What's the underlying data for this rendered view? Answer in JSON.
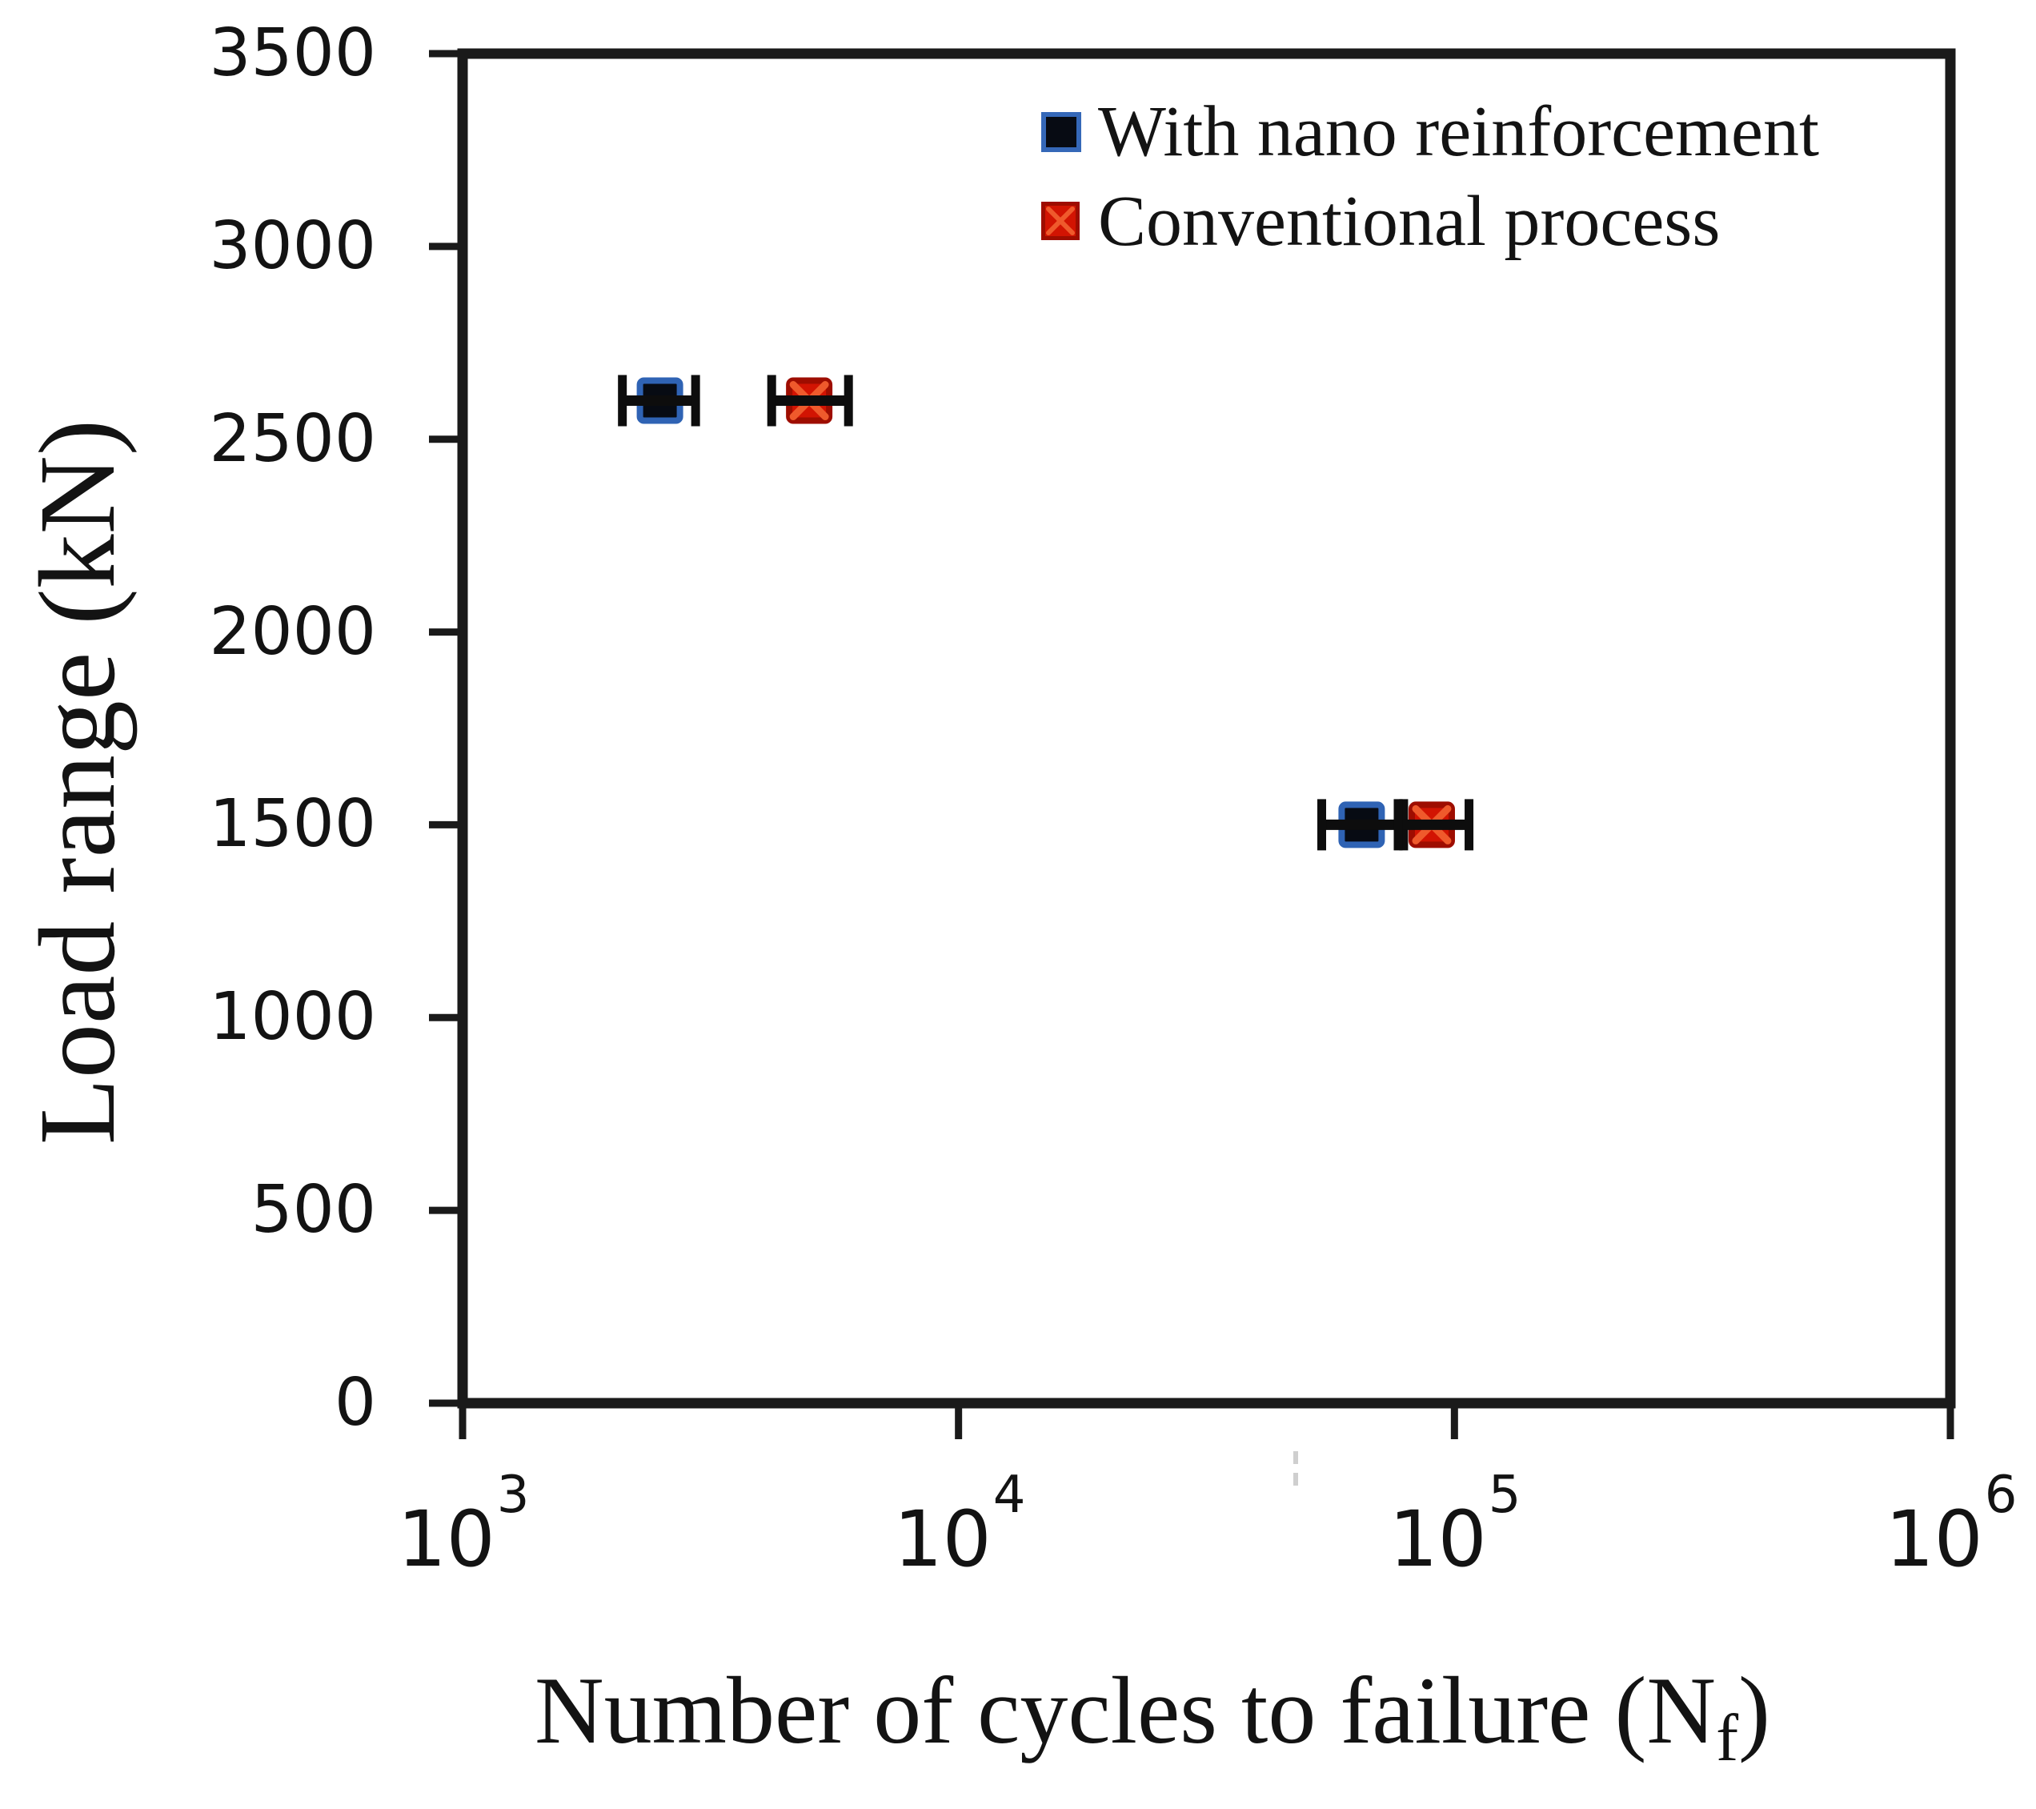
{
  "figure": {
    "background": "#ffffff",
    "text_color": "#131313"
  },
  "legend": {
    "position": "top-right",
    "items": [
      {
        "label": "With nano reinforcement",
        "marker": "filled-square",
        "fill": "#070b13",
        "border": "#3568b8"
      },
      {
        "label": "Conventional process",
        "marker": "crossed-square",
        "fill": "#d21402",
        "border": "#9e0d00",
        "cross": "#ef5a2c"
      }
    ]
  },
  "chart_data": {
    "type": "scatter",
    "title": "",
    "xlabel_prefix": "Number of cycles to failure (N",
    "xlabel_sub": "f",
    "xlabel_suffix": ")",
    "ylabel": "Load range (kN)",
    "x_scale": "log",
    "x_range": [
      1000,
      1000000
    ],
    "y_range": [
      0,
      3500
    ],
    "grid": false,
    "x_tick_base": "10",
    "x_tick_exponents": [
      "3",
      "4",
      "5",
      "6"
    ],
    "y_ticks": [
      "0",
      "500",
      "1000",
      "1500",
      "2000",
      "2500",
      "3000",
      "3500"
    ],
    "axis_color": "#1a1a1a",
    "error_bar_color": "#0d0d0d",
    "series": [
      {
        "name": "With nano reinforcement",
        "marker": "filled-square",
        "marker_fill": "#070b13",
        "marker_border": "#2f63b4",
        "points": [
          {
            "x": 2500,
            "y": 2600,
            "x_lo": 2100,
            "x_hi": 2950
          },
          {
            "x": 65000,
            "y": 1500,
            "x_lo": 54000,
            "x_hi": 79000
          }
        ]
      },
      {
        "name": "Conventional process",
        "marker": "crossed-square",
        "marker_fill": "#d21402",
        "marker_border": "#9e0d00",
        "marker_cross": "#ef5a2c",
        "points": [
          {
            "x": 5000,
            "y": 2600,
            "x_lo": 4200,
            "x_hi": 6000
          },
          {
            "x": 90000,
            "y": 1500,
            "x_lo": 77000,
            "x_hi": 107000
          }
        ]
      }
    ]
  }
}
